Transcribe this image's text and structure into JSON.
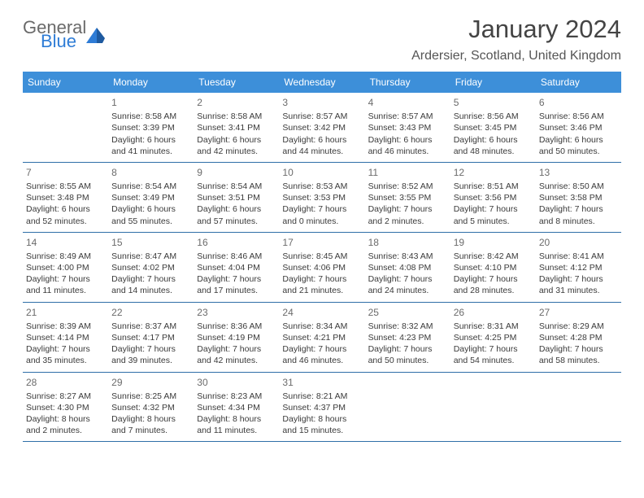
{
  "brand": {
    "line1": "General",
    "line2": "Blue"
  },
  "title": "January 2024",
  "location": "Ardersier, Scotland, United Kingdom",
  "day_headers": [
    "Sunday",
    "Monday",
    "Tuesday",
    "Wednesday",
    "Thursday",
    "Friday",
    "Saturday"
  ],
  "colors": {
    "header_bg": "#3d8fd9",
    "header_text": "#ffffff",
    "row_border": "#2f6fa8",
    "logo_gray": "#6a6a6a",
    "logo_blue": "#2e7cd6"
  },
  "weeks": [
    [
      {
        "day": "",
        "sunrise": "",
        "sunset": "",
        "daylight1": "",
        "daylight2": "",
        "empty": true
      },
      {
        "day": "1",
        "sunrise": "Sunrise: 8:58 AM",
        "sunset": "Sunset: 3:39 PM",
        "daylight1": "Daylight: 6 hours",
        "daylight2": "and 41 minutes."
      },
      {
        "day": "2",
        "sunrise": "Sunrise: 8:58 AM",
        "sunset": "Sunset: 3:41 PM",
        "daylight1": "Daylight: 6 hours",
        "daylight2": "and 42 minutes."
      },
      {
        "day": "3",
        "sunrise": "Sunrise: 8:57 AM",
        "sunset": "Sunset: 3:42 PM",
        "daylight1": "Daylight: 6 hours",
        "daylight2": "and 44 minutes."
      },
      {
        "day": "4",
        "sunrise": "Sunrise: 8:57 AM",
        "sunset": "Sunset: 3:43 PM",
        "daylight1": "Daylight: 6 hours",
        "daylight2": "and 46 minutes."
      },
      {
        "day": "5",
        "sunrise": "Sunrise: 8:56 AM",
        "sunset": "Sunset: 3:45 PM",
        "daylight1": "Daylight: 6 hours",
        "daylight2": "and 48 minutes."
      },
      {
        "day": "6",
        "sunrise": "Sunrise: 8:56 AM",
        "sunset": "Sunset: 3:46 PM",
        "daylight1": "Daylight: 6 hours",
        "daylight2": "and 50 minutes."
      }
    ],
    [
      {
        "day": "7",
        "sunrise": "Sunrise: 8:55 AM",
        "sunset": "Sunset: 3:48 PM",
        "daylight1": "Daylight: 6 hours",
        "daylight2": "and 52 minutes."
      },
      {
        "day": "8",
        "sunrise": "Sunrise: 8:54 AM",
        "sunset": "Sunset: 3:49 PM",
        "daylight1": "Daylight: 6 hours",
        "daylight2": "and 55 minutes."
      },
      {
        "day": "9",
        "sunrise": "Sunrise: 8:54 AM",
        "sunset": "Sunset: 3:51 PM",
        "daylight1": "Daylight: 6 hours",
        "daylight2": "and 57 minutes."
      },
      {
        "day": "10",
        "sunrise": "Sunrise: 8:53 AM",
        "sunset": "Sunset: 3:53 PM",
        "daylight1": "Daylight: 7 hours",
        "daylight2": "and 0 minutes."
      },
      {
        "day": "11",
        "sunrise": "Sunrise: 8:52 AM",
        "sunset": "Sunset: 3:55 PM",
        "daylight1": "Daylight: 7 hours",
        "daylight2": "and 2 minutes."
      },
      {
        "day": "12",
        "sunrise": "Sunrise: 8:51 AM",
        "sunset": "Sunset: 3:56 PM",
        "daylight1": "Daylight: 7 hours",
        "daylight2": "and 5 minutes."
      },
      {
        "day": "13",
        "sunrise": "Sunrise: 8:50 AM",
        "sunset": "Sunset: 3:58 PM",
        "daylight1": "Daylight: 7 hours",
        "daylight2": "and 8 minutes."
      }
    ],
    [
      {
        "day": "14",
        "sunrise": "Sunrise: 8:49 AM",
        "sunset": "Sunset: 4:00 PM",
        "daylight1": "Daylight: 7 hours",
        "daylight2": "and 11 minutes."
      },
      {
        "day": "15",
        "sunrise": "Sunrise: 8:47 AM",
        "sunset": "Sunset: 4:02 PM",
        "daylight1": "Daylight: 7 hours",
        "daylight2": "and 14 minutes."
      },
      {
        "day": "16",
        "sunrise": "Sunrise: 8:46 AM",
        "sunset": "Sunset: 4:04 PM",
        "daylight1": "Daylight: 7 hours",
        "daylight2": "and 17 minutes."
      },
      {
        "day": "17",
        "sunrise": "Sunrise: 8:45 AM",
        "sunset": "Sunset: 4:06 PM",
        "daylight1": "Daylight: 7 hours",
        "daylight2": "and 21 minutes."
      },
      {
        "day": "18",
        "sunrise": "Sunrise: 8:43 AM",
        "sunset": "Sunset: 4:08 PM",
        "daylight1": "Daylight: 7 hours",
        "daylight2": "and 24 minutes."
      },
      {
        "day": "19",
        "sunrise": "Sunrise: 8:42 AM",
        "sunset": "Sunset: 4:10 PM",
        "daylight1": "Daylight: 7 hours",
        "daylight2": "and 28 minutes."
      },
      {
        "day": "20",
        "sunrise": "Sunrise: 8:41 AM",
        "sunset": "Sunset: 4:12 PM",
        "daylight1": "Daylight: 7 hours",
        "daylight2": "and 31 minutes."
      }
    ],
    [
      {
        "day": "21",
        "sunrise": "Sunrise: 8:39 AM",
        "sunset": "Sunset: 4:14 PM",
        "daylight1": "Daylight: 7 hours",
        "daylight2": "and 35 minutes."
      },
      {
        "day": "22",
        "sunrise": "Sunrise: 8:37 AM",
        "sunset": "Sunset: 4:17 PM",
        "daylight1": "Daylight: 7 hours",
        "daylight2": "and 39 minutes."
      },
      {
        "day": "23",
        "sunrise": "Sunrise: 8:36 AM",
        "sunset": "Sunset: 4:19 PM",
        "daylight1": "Daylight: 7 hours",
        "daylight2": "and 42 minutes."
      },
      {
        "day": "24",
        "sunrise": "Sunrise: 8:34 AM",
        "sunset": "Sunset: 4:21 PM",
        "daylight1": "Daylight: 7 hours",
        "daylight2": "and 46 minutes."
      },
      {
        "day": "25",
        "sunrise": "Sunrise: 8:32 AM",
        "sunset": "Sunset: 4:23 PM",
        "daylight1": "Daylight: 7 hours",
        "daylight2": "and 50 minutes."
      },
      {
        "day": "26",
        "sunrise": "Sunrise: 8:31 AM",
        "sunset": "Sunset: 4:25 PM",
        "daylight1": "Daylight: 7 hours",
        "daylight2": "and 54 minutes."
      },
      {
        "day": "27",
        "sunrise": "Sunrise: 8:29 AM",
        "sunset": "Sunset: 4:28 PM",
        "daylight1": "Daylight: 7 hours",
        "daylight2": "and 58 minutes."
      }
    ],
    [
      {
        "day": "28",
        "sunrise": "Sunrise: 8:27 AM",
        "sunset": "Sunset: 4:30 PM",
        "daylight1": "Daylight: 8 hours",
        "daylight2": "and 2 minutes."
      },
      {
        "day": "29",
        "sunrise": "Sunrise: 8:25 AM",
        "sunset": "Sunset: 4:32 PM",
        "daylight1": "Daylight: 8 hours",
        "daylight2": "and 7 minutes."
      },
      {
        "day": "30",
        "sunrise": "Sunrise: 8:23 AM",
        "sunset": "Sunset: 4:34 PM",
        "daylight1": "Daylight: 8 hours",
        "daylight2": "and 11 minutes."
      },
      {
        "day": "31",
        "sunrise": "Sunrise: 8:21 AM",
        "sunset": "Sunset: 4:37 PM",
        "daylight1": "Daylight: 8 hours",
        "daylight2": "and 15 minutes."
      },
      {
        "day": "",
        "sunrise": "",
        "sunset": "",
        "daylight1": "",
        "daylight2": "",
        "empty": true
      },
      {
        "day": "",
        "sunrise": "",
        "sunset": "",
        "daylight1": "",
        "daylight2": "",
        "empty": true
      },
      {
        "day": "",
        "sunrise": "",
        "sunset": "",
        "daylight1": "",
        "daylight2": "",
        "empty": true
      }
    ]
  ]
}
